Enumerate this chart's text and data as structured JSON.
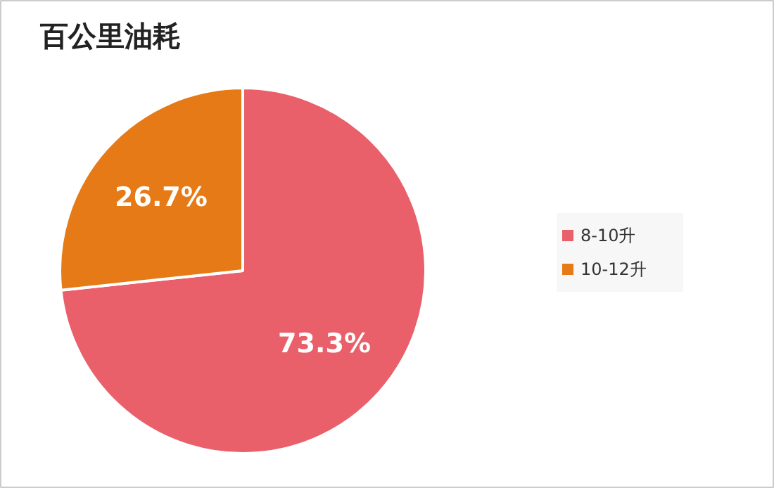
{
  "chart_data": {
    "type": "pie",
    "title": "百公里油耗",
    "categories": [
      "8-10升",
      "10-12升"
    ],
    "values": [
      73.3,
      26.7
    ],
    "colors": [
      "#e95f6a",
      "#e57a16"
    ],
    "value_labels": [
      "73.3%",
      "26.7%"
    ],
    "legend": "right"
  }
}
